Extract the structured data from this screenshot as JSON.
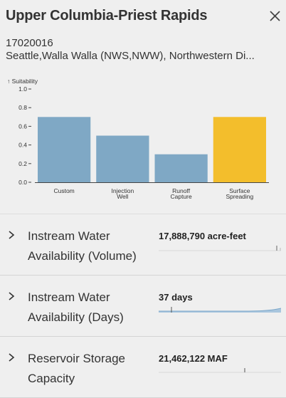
{
  "panel": {
    "title": "Upper Columbia-Priest Rapids",
    "huc_code": "17020016",
    "offices": "Seattle,Walla Walla (NWS,NWW), Northwestern Di..."
  },
  "chart_data": {
    "type": "bar",
    "ylabel": "↑ Suitability",
    "ylim": [
      0,
      1.0
    ],
    "yticks": [
      "0.0",
      "0.2",
      "0.4",
      "0.6",
      "0.8",
      "1.0"
    ],
    "categories": [
      [
        "Custom"
      ],
      [
        "Injection",
        "Well"
      ],
      [
        "Runoff",
        "Capture"
      ],
      [
        "Surface",
        "Spreading"
      ]
    ],
    "values": [
      0.7,
      0.5,
      0.3,
      0.7
    ],
    "colors": [
      "#7fa8c5",
      "#7fa8c5",
      "#7fa8c5",
      "#f3be2c"
    ]
  },
  "rows": [
    {
      "label": "Instream Water Availability (Volume)",
      "value": "17,888,790 acre-feet"
    },
    {
      "label": "Instream Water Availability (Days)",
      "value": "37 days"
    },
    {
      "label": "Reservoir Storage Capacity",
      "value": "21,462,122 MAF"
    }
  ],
  "icons": {
    "close": "close-icon",
    "expand": "chevron-right-icon"
  }
}
